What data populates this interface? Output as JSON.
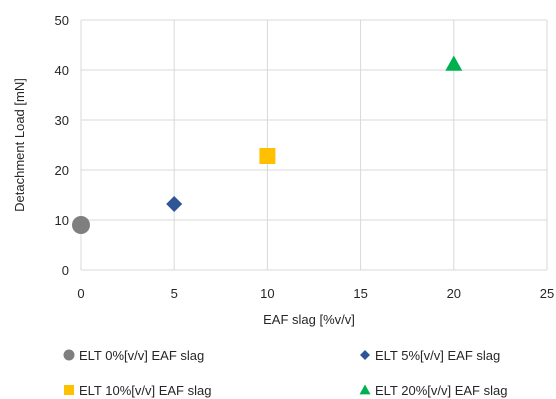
{
  "chart_data": {
    "type": "scatter",
    "title": "",
    "xlabel": "EAF slag [%v/v]",
    "ylabel": "Detachment Load [mN]",
    "xlim": [
      0,
      25
    ],
    "ylim": [
      0,
      50
    ],
    "xticks": [
      0,
      5,
      10,
      15,
      20,
      25
    ],
    "yticks": [
      0,
      10,
      20,
      30,
      40,
      50
    ],
    "grid": "vertical and horizontal gridlines",
    "legend_position": "bottom",
    "series": [
      {
        "name": "ELT 0%[v/v] EAF slag",
        "marker": "circle",
        "color": "#7f7f7f",
        "x": [
          0
        ],
        "y": [
          9
        ]
      },
      {
        "name": "ELT 5%[v/v] EAF slag",
        "marker": "diamond",
        "color": "#2f5597",
        "x": [
          5
        ],
        "y": [
          13.2
        ]
      },
      {
        "name": "ELT 10%[v/v] EAF slag",
        "marker": "square",
        "color": "#ffc000",
        "x": [
          10
        ],
        "y": [
          22.8
        ]
      },
      {
        "name": "ELT 20%[v/v] EAF slag",
        "marker": "triangle",
        "color": "#00b050",
        "x": [
          20
        ],
        "y": [
          41.2
        ]
      }
    ]
  }
}
